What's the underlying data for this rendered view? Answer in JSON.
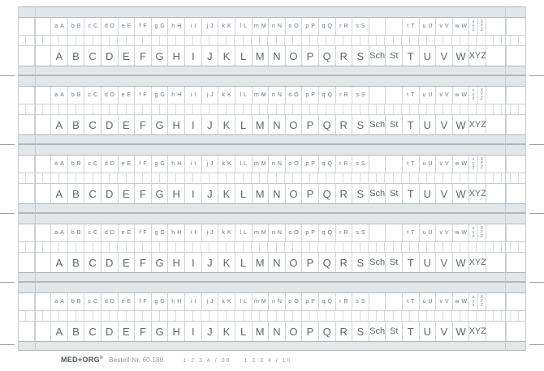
{
  "sheet": {
    "strip_count": 5,
    "small_row": {
      "pairs_before_gap": [
        [
          "a",
          "A"
        ],
        [
          "b",
          "B"
        ],
        [
          "c",
          "C"
        ],
        [
          "d",
          "D"
        ],
        [
          "e",
          "E"
        ],
        [
          "f",
          "F"
        ],
        [
          "g",
          "G"
        ],
        [
          "h",
          "H"
        ],
        [
          "i",
          "I"
        ],
        [
          "j",
          "J"
        ],
        [
          "k",
          "K"
        ],
        [
          "l",
          "L"
        ],
        [
          "m",
          "M"
        ],
        [
          "n",
          "N"
        ],
        [
          "o",
          "O"
        ],
        [
          "p",
          "P"
        ],
        [
          "q",
          "Q"
        ],
        [
          "r",
          "R"
        ],
        [
          "s",
          "S"
        ]
      ],
      "gap_cells": 2,
      "pairs_after_gap": [
        [
          "t",
          "T"
        ],
        [
          "u",
          "U"
        ],
        [
          "v",
          "V"
        ],
        [
          "w",
          "W"
        ]
      ],
      "stacked_lower": [
        "x",
        "y",
        "z"
      ],
      "stacked_upper": [
        "X",
        "Y",
        "Z"
      ]
    },
    "large_row": [
      "A",
      "B",
      "C",
      "D",
      "E",
      "F",
      "G",
      "H",
      "I",
      "J",
      "K",
      "L",
      "M",
      "N",
      "O",
      "P",
      "Q",
      "R",
      "S",
      "Sch",
      "St",
      "T",
      "U",
      "V",
      "W",
      "XYZ"
    ]
  },
  "footer": {
    "brand": "MED+ORG",
    "reg": "®",
    "order_label": "Bestell-Nr. 60.180",
    "codes": [
      "1 2 3 4 / 09",
      "1 2 3 4 / 10"
    ]
  },
  "colors": {
    "band_fill": "#e4e7ea",
    "band_edge": "#b0b6bc",
    "grid_line": "#cfd4d8",
    "letter_text": "#606870",
    "small_letter_text": "#6e767d",
    "cut_mark": "#9aa1a7"
  },
  "cut_marks": {
    "dash_y_positions": [
      93,
      178,
      263,
      348,
      425
    ]
  }
}
